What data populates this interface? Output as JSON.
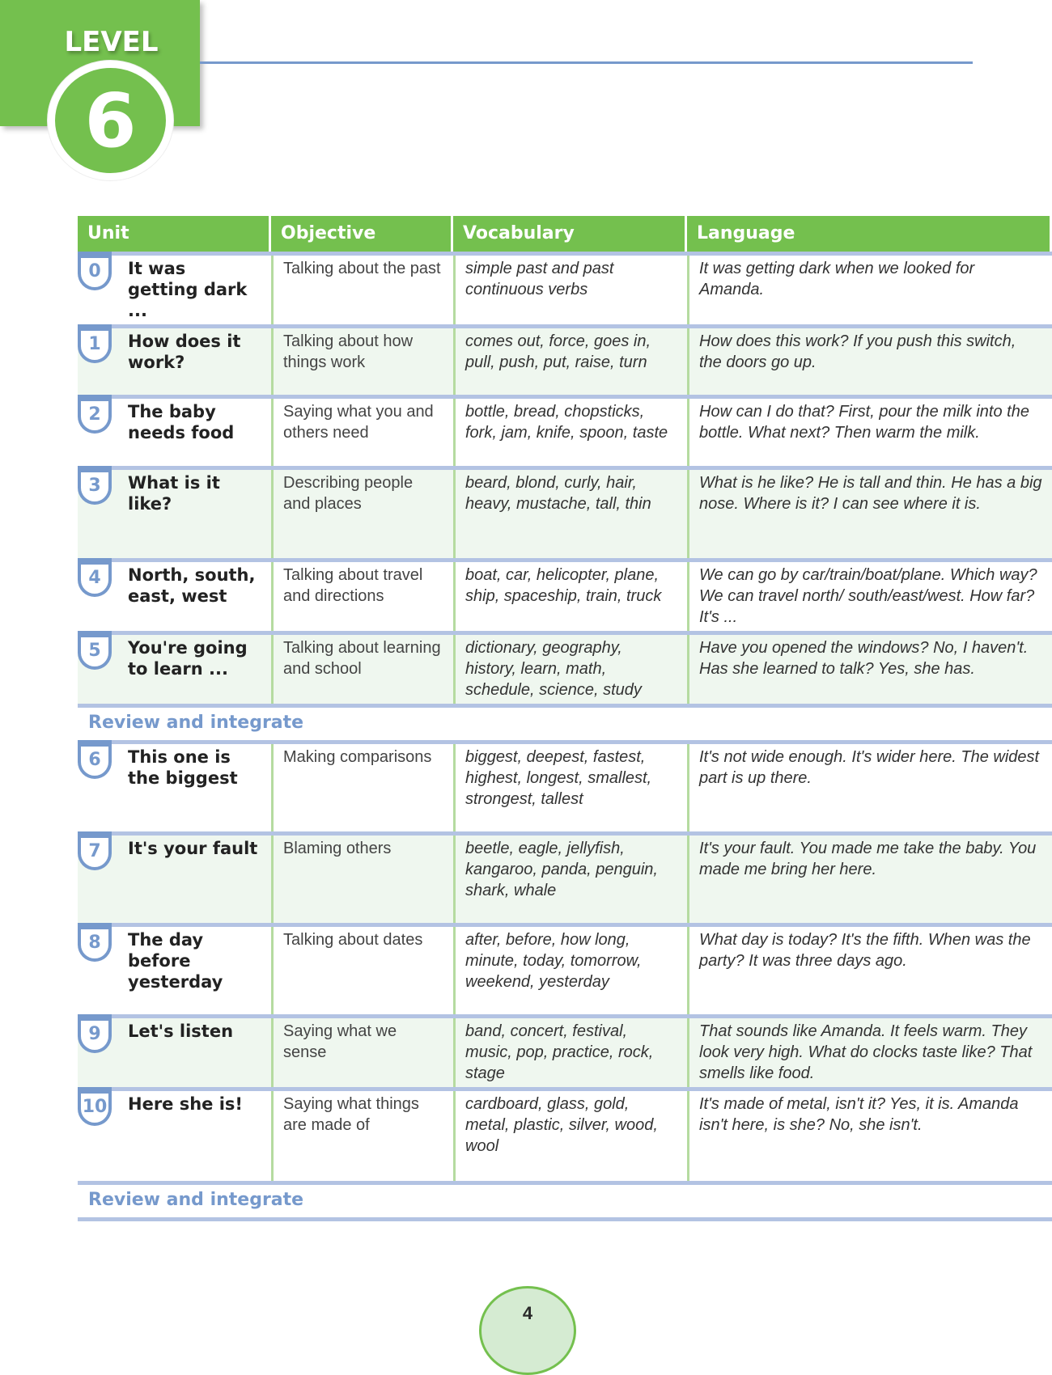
{
  "level": {
    "label": "LEVEL",
    "number": "6"
  },
  "colors": {
    "green": "#74c04e",
    "blue": "#7699cc",
    "row_tint": "#eff7ef"
  },
  "table": {
    "headers": [
      "Unit",
      "Objective",
      "Vocabulary",
      "Language"
    ],
    "rows": [
      {
        "num": "0",
        "unit": "It was getting dark ...",
        "objective": "Talking about the past",
        "vocabulary": "simple past and past continuous verbs",
        "language": "It was getting dark when we looked for Amanda."
      },
      {
        "num": "1",
        "unit": "How does it work?",
        "objective": "Talking about how things work",
        "vocabulary": "comes out, force, goes in, pull, push, put, raise, turn",
        "language": "How does this work? If you push this switch, the doors go up."
      },
      {
        "num": "2",
        "unit": "The baby needs food",
        "objective": "Saying what you and others need",
        "vocabulary": "bottle, bread, chopsticks, fork, jam, knife, spoon, taste",
        "language": "How can I do that? First, pour the milk into the bottle. What next? Then warm the milk."
      },
      {
        "num": "3",
        "unit": "What is it like?",
        "objective": "Describing people and places",
        "vocabulary": "beard, blond, curly, hair, heavy, mustache, tall, thin",
        "language": "What is he like? He is tall and thin. He has a big nose. Where is it? I can see where it is."
      },
      {
        "num": "4",
        "unit": "North, south, east, west",
        "objective": "Talking about travel and directions",
        "vocabulary": "boat, car, helicopter, plane, ship, spaceship, train, truck",
        "language": "We can go by car/train/boat/plane. Which way? We can travel north/ south/east/west. How far? It's ..."
      },
      {
        "num": "5",
        "unit": "You're going to learn ...",
        "objective": "Talking about learning and school",
        "vocabulary": "dictionary, geography, history, learn, math, schedule, science, study",
        "language": "Have you opened the windows? No, I haven't. Has she learned to talk? Yes, she has."
      },
      {
        "num": "6",
        "unit": "This one is the biggest",
        "objective": "Making comparisons",
        "vocabulary": "biggest, deepest, fastest, highest, longest, smallest, strongest, tallest",
        "language": "It's not wide enough. It's wider here. The widest part is up there."
      },
      {
        "num": "7",
        "unit": "It's your fault",
        "objective": "Blaming others",
        "vocabulary": "beetle, eagle, jellyfish, kangaroo, panda, penguin, shark, whale",
        "language": "It's your fault. You made me take the baby. You made me bring her here."
      },
      {
        "num": "8",
        "unit": "The day before yesterday",
        "objective": "Talking about dates",
        "vocabulary": "after, before, how long, minute, today, tomorrow, weekend, yesterday",
        "language": "What day is today? It's the fifth. When was the party? It was three days ago."
      },
      {
        "num": "9",
        "unit": "Let's listen",
        "objective": "Saying what we sense",
        "vocabulary": "band, concert, festival, music, pop, practice, rock, stage",
        "language": "That sounds like Amanda. It feels warm. They look very high. What do clocks taste like? That smells like food."
      },
      {
        "num": "10",
        "unit": "Here she is!",
        "objective": "Saying what things are made of",
        "vocabulary": "cardboard, glass, gold, metal, plastic, silver, wood, wool",
        "language": "It's made of metal, isn't it? Yes, it is. Amanda isn't here, is she? No, she isn't."
      }
    ],
    "review_label": "Review and integrate"
  },
  "page_number": "4"
}
